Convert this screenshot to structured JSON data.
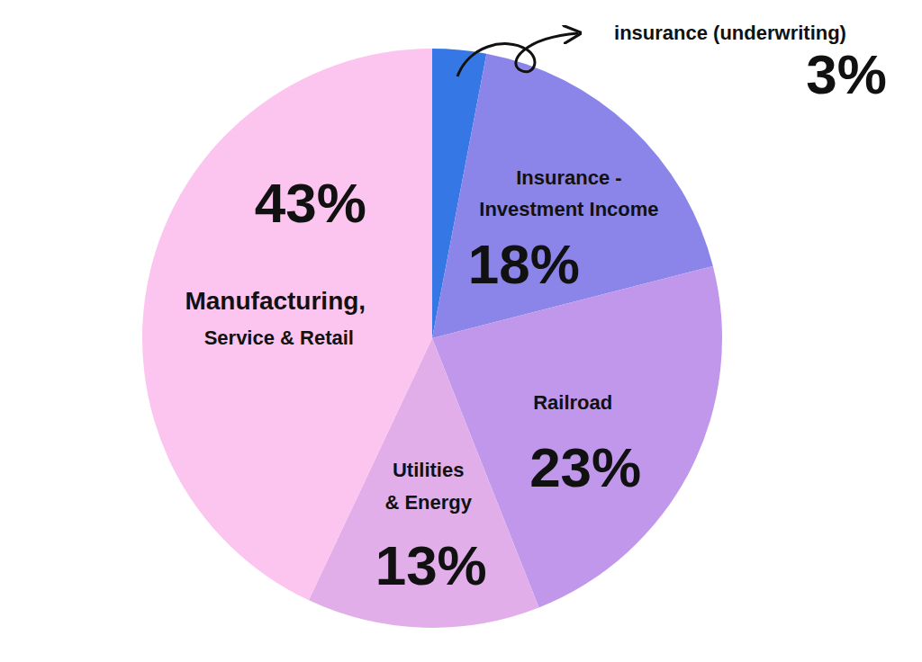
{
  "chart_data": {
    "type": "pie",
    "categories": [
      "insurance (underwriting)",
      "Insurance - Investment Income",
      "Railroad",
      "Utilities & Energy",
      "Manufacturing, Service & Retail"
    ],
    "values": [
      3,
      18,
      23,
      13,
      43
    ],
    "value_labels": [
      "3%",
      "18%",
      "23%",
      "13%",
      "43%"
    ],
    "colors": [
      "#3578e5",
      "#8b85ea",
      "#c097ea",
      "#e2aeea",
      "#fcc5ef"
    ],
    "data_labels": true
  }
}
